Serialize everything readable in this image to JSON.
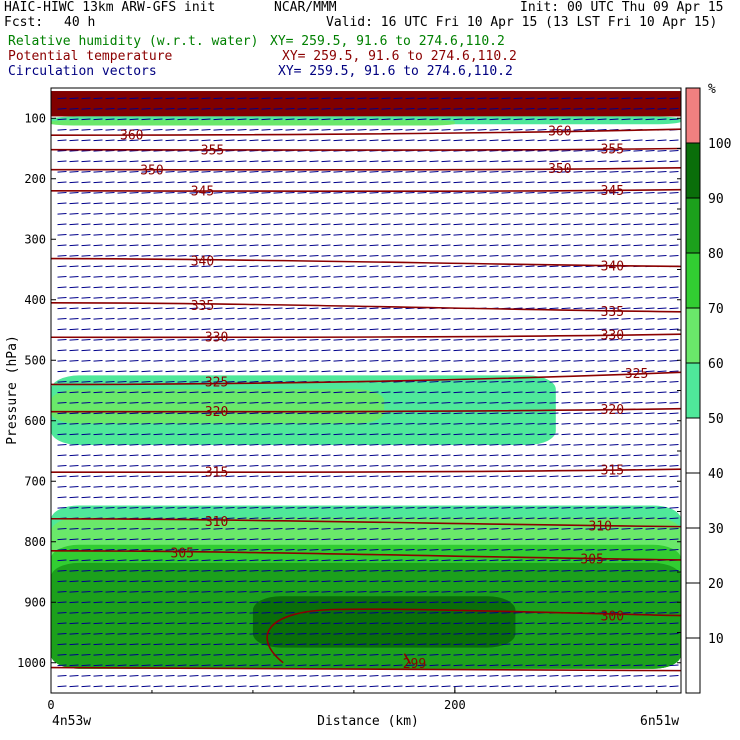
{
  "header": {
    "title_left": "HAIC-HIWC 13km ARW-GFS init",
    "org": "NCAR/MMM",
    "init": "Init: 00 UTC Thu 09 Apr 15",
    "fcst_label": "Fcst:",
    "fcst_value": "40 h",
    "valid": "Valid: 16 UTC Fri 10 Apr 15 (13 LST Fri 10 Apr 15)",
    "fields": [
      {
        "name": "Relative humidity (w.r.t. water)",
        "xy": "XY= 259.5, 91.6 to 274.6,110.2",
        "color": "#008000"
      },
      {
        "name": "Potential temperature",
        "xy": "XY= 259.5, 91.6 to 274.6,110.2",
        "color": "#8b0000"
      },
      {
        "name": "Circulation vectors",
        "xy": "XY= 259.5, 91.6 to 274.6,110.2",
        "color": "#000080"
      }
    ]
  },
  "chart_data": {
    "type": "heatmap",
    "title": "Relative humidity (w.r.t. water)",
    "xlabel": "Distance (km)",
    "ylabel": "Pressure (hPa)",
    "x_ticks": [
      0,
      200
    ],
    "x_range": [
      0,
      312
    ],
    "x_end_labels": [
      "4n53w",
      "6n51w"
    ],
    "y_ticks": [
      100,
      200,
      300,
      400,
      500,
      600,
      700,
      800,
      900,
      1000
    ],
    "y_range": [
      1050,
      50
    ],
    "y_scale": "linear",
    "colorbar": {
      "unit": "%",
      "ticks": [
        10,
        20,
        30,
        40,
        50,
        60,
        70,
        80,
        90,
        100
      ],
      "bins": [
        {
          "min": 50,
          "max": 60,
          "color": "#4fe89a"
        },
        {
          "min": 60,
          "max": 70,
          "color": "#6ae86a"
        },
        {
          "min": 70,
          "max": 80,
          "color": "#32cd32"
        },
        {
          "min": 80,
          "max": 90,
          "color": "#1ca01c"
        },
        {
          "min": 90,
          "max": 100,
          "color": "#0a6e0a"
        },
        {
          "min": 100,
          "max": 110,
          "color": "#f08080"
        }
      ]
    },
    "rh_regions": [
      {
        "bin": 50,
        "x": [
          0,
          250
        ],
        "p": [
          525,
          640
        ]
      },
      {
        "bin": 60,
        "x": [
          0,
          165
        ],
        "p": [
          548,
          605
        ]
      },
      {
        "bin": 50,
        "x": [
          0,
          312
        ],
        "p": [
          740,
          1010
        ]
      },
      {
        "bin": 60,
        "x": [
          0,
          312
        ],
        "p": [
          760,
          1010
        ]
      },
      {
        "bin": 70,
        "x": [
          0,
          312
        ],
        "p": [
          805,
          1010
        ]
      },
      {
        "bin": 80,
        "x": [
          0,
          312
        ],
        "p": [
          835,
          1010
        ]
      },
      {
        "bin": 90,
        "x": [
          100,
          230
        ],
        "p": [
          890,
          975
        ]
      },
      {
        "bin": 50,
        "x": [
          0,
          312
        ],
        "p": [
          97,
          110
        ]
      },
      {
        "bin": 60,
        "x": [
          0,
          200
        ],
        "p": [
          103,
          112
        ]
      }
    ],
    "stratosphere_band": {
      "p": [
        55,
        97
      ],
      "color": "#800000"
    },
    "isentropes": {
      "color": "#8b0000",
      "lines": [
        {
          "label": "360",
          "p_left": 128,
          "p_right": 118,
          "label_x": [
            40,
            252
          ]
        },
        {
          "label": "355",
          "p_left": 152,
          "p_right": 150,
          "label_x": [
            80,
            278
          ]
        },
        {
          "label": "350",
          "p_left": 185,
          "p_right": 182,
          "label_x": [
            50,
            252
          ]
        },
        {
          "label": "345",
          "p_left": 220,
          "p_right": 218,
          "label_x": [
            75,
            278
          ]
        },
        {
          "label": "340",
          "p_left": 332,
          "p_right": 345,
          "label_x": [
            75,
            278
          ]
        },
        {
          "label": "335",
          "p_left": 405,
          "p_right": 420,
          "label_x": [
            75,
            278
          ]
        },
        {
          "label": "330",
          "p_left": 462,
          "p_right": 457,
          "label_x": [
            82,
            278
          ]
        },
        {
          "label": "325",
          "p_left": 540,
          "p_right": 520,
          "label_x": [
            82,
            290
          ]
        },
        {
          "label": "320",
          "p_left": 585,
          "p_right": 580,
          "label_x": [
            82,
            278
          ]
        },
        {
          "label": "315",
          "p_left": 685,
          "p_right": 680,
          "label_x": [
            82,
            278
          ]
        },
        {
          "label": "310",
          "p_left": 762,
          "p_right": 775,
          "label_x": [
            82,
            272
          ]
        },
        {
          "label": "305",
          "p_left": 815,
          "p_right": 830,
          "label_x": [
            65,
            268
          ]
        },
        {
          "label": "300",
          "p_left": 920,
          "p_right": 922,
          "label_x": [
            278
          ]
        },
        {
          "label": "299",
          "p_left": 1000,
          "p_right": 1000,
          "label_x": [
            180
          ]
        }
      ]
    },
    "vectors": {
      "color": "#00008b",
      "direction": "westward"
    }
  }
}
